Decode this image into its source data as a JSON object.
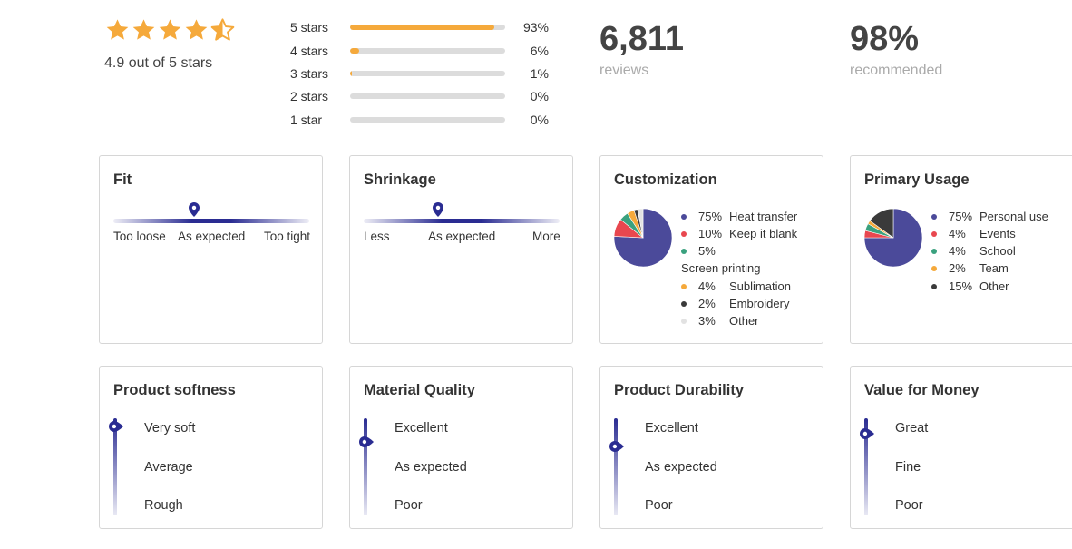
{
  "summary": {
    "rating_value": 4.9,
    "rating_text": "4.9 out of 5 stars",
    "star_color": "#f5a93b",
    "distribution": [
      {
        "label": "5 stars",
        "pct_text": "93%",
        "pct": 93
      },
      {
        "label": "4 stars",
        "pct_text": "6%",
        "pct": 6
      },
      {
        "label": "3 stars",
        "pct_text": "1%",
        "pct": 1
      },
      {
        "label": "2 stars",
        "pct_text": "0%",
        "pct": 0
      },
      {
        "label": "1 star",
        "pct_text": "0%",
        "pct": 0
      }
    ],
    "reviews_count": "6,811",
    "reviews_label": "reviews",
    "recommended_pct": "98%",
    "recommended_label": "recommended"
  },
  "scales": {
    "fit": {
      "title": "Fit",
      "left": "Too loose",
      "center": "As expected",
      "right": "Too tight",
      "position": 0.41
    },
    "shrinkage": {
      "title": "Shrinkage",
      "left": "Less",
      "center": "As expected",
      "right": "More",
      "position": 0.38
    }
  },
  "customization": {
    "title": "Customization",
    "items": [
      {
        "pct": "75%",
        "name": "Heat transfer",
        "value": 75,
        "color": "#4b4a9a"
      },
      {
        "pct": "10%",
        "name": "Keep it blank",
        "value": 10,
        "color": "#e8474f"
      },
      {
        "pct": "5%",
        "name": "Screen printing",
        "value": 5,
        "color": "#3aa17e"
      },
      {
        "pct": "4%",
        "name": "Sublimation",
        "value": 4,
        "color": "#f5a93b"
      },
      {
        "pct": "2%",
        "name": "Embroidery",
        "value": 2,
        "color": "#3a3a3a"
      },
      {
        "pct": "3%",
        "name": "Other",
        "value": 3,
        "color": "#e2e2e2"
      }
    ]
  },
  "usage": {
    "title": "Primary Usage",
    "items": [
      {
        "pct": "75%",
        "name": "Personal use",
        "value": 75,
        "color": "#4b4a9a"
      },
      {
        "pct": "4%",
        "name": "Events",
        "value": 4,
        "color": "#e8474f"
      },
      {
        "pct": "4%",
        "name": "School",
        "value": 4,
        "color": "#3aa17e"
      },
      {
        "pct": "2%",
        "name": "Team",
        "value": 2,
        "color": "#f5a93b"
      },
      {
        "pct": "15%",
        "name": "Other",
        "value": 15,
        "color": "#3a3a3a"
      }
    ]
  },
  "vertical": [
    {
      "title": "Product softness",
      "top": "Very soft",
      "mid": "Average",
      "bottom": "Rough",
      "position": 0.08
    },
    {
      "title": "Material Quality",
      "top": "Excellent",
      "mid": "As expected",
      "bottom": "Poor",
      "position": 0.24
    },
    {
      "title": "Product Durability",
      "top": "Excellent",
      "mid": "As expected",
      "bottom": "Poor",
      "position": 0.29
    },
    {
      "title": "Value for Money",
      "top": "Great",
      "mid": "Fine",
      "bottom": "Poor",
      "position": 0.16
    }
  ],
  "accent_color": "#2a2c92"
}
